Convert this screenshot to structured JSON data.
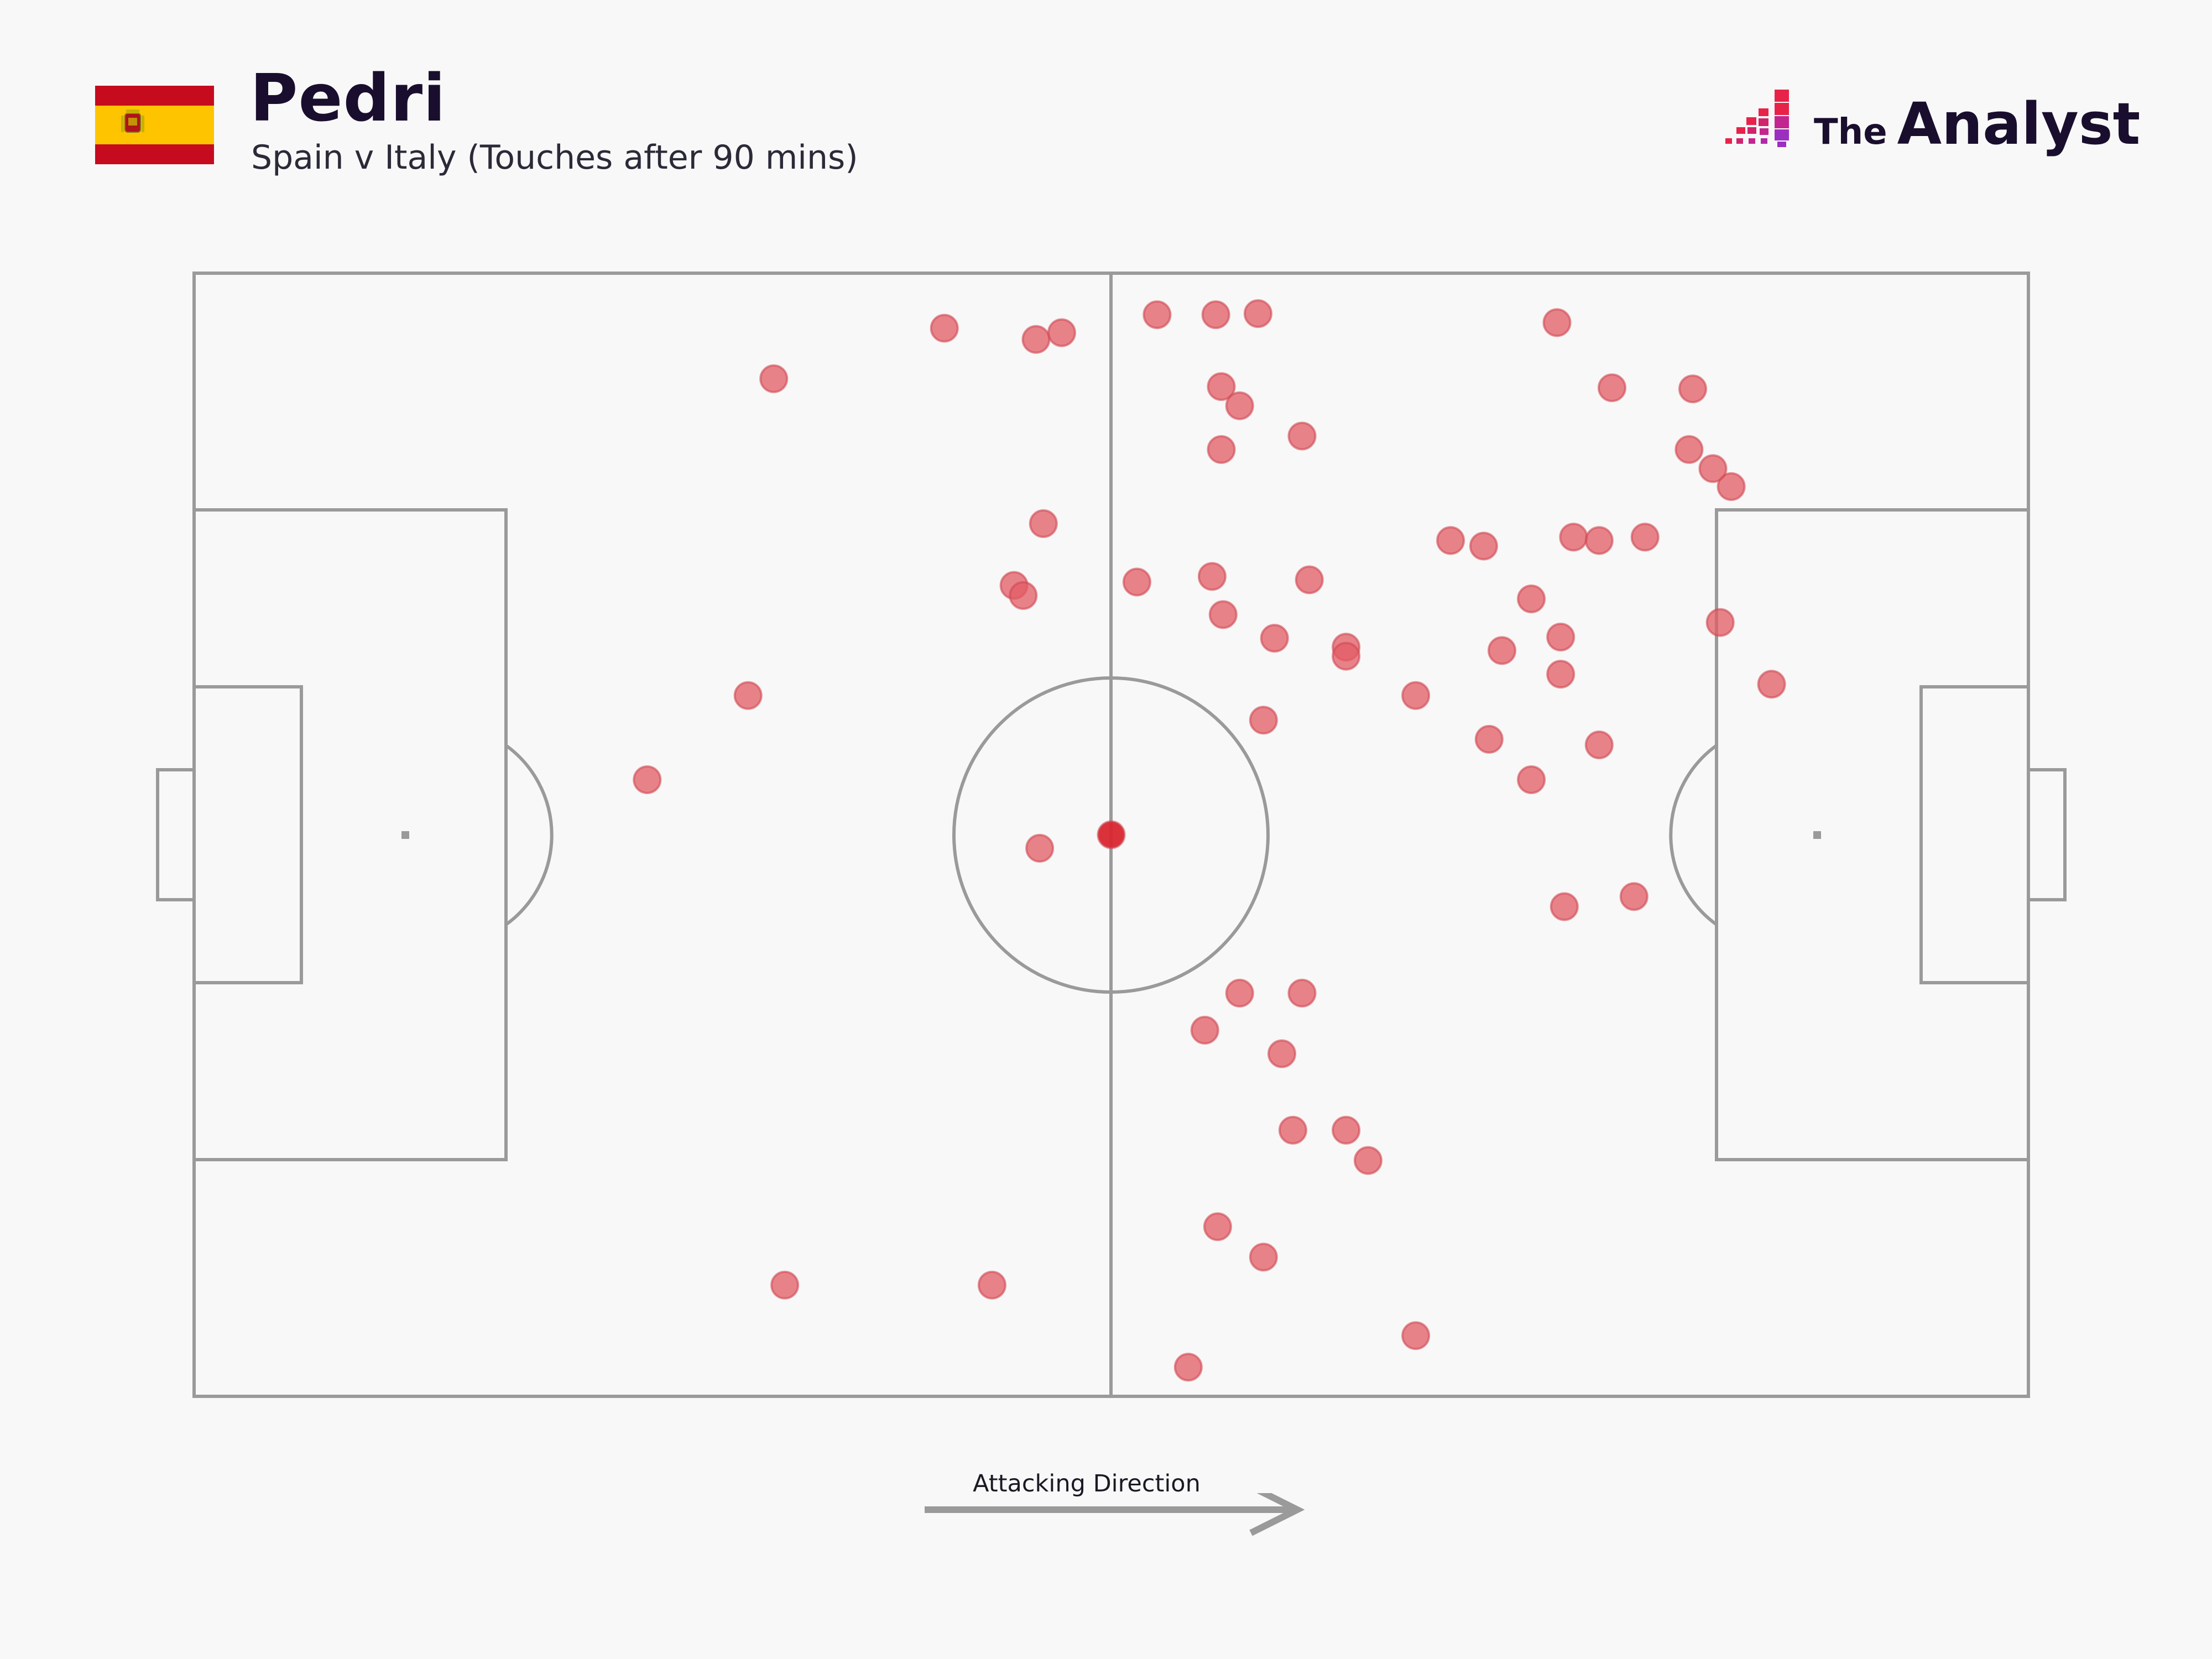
{
  "header": {
    "title": "Pedri",
    "subtitle": "Spain v Italy (Touches after 90 mins)"
  },
  "flag": {
    "country": "Spain",
    "colors": {
      "red": "#c60b1e",
      "yellow": "#ffc400"
    }
  },
  "brand": {
    "the": "The",
    "name": "Analyst",
    "accent_colors": [
      "#e8234a",
      "#c3268f",
      "#9b2fc0"
    ]
  },
  "footer": {
    "direction_label": "Attacking Direction"
  },
  "chart_data": {
    "type": "scatter",
    "title": "Pedri",
    "subtitle": "Spain v Italy (Touches after 90 mins)",
    "xlabel": "",
    "ylabel": "",
    "xlim": [
      0,
      100
    ],
    "ylim": [
      0,
      100
    ],
    "grid": false,
    "marker_color": "#e35b64",
    "highlight_color": "#d8262f",
    "points": [
      {
        "x": 40.9,
        "y": 95.1
      },
      {
        "x": 45.9,
        "y": 94.1
      },
      {
        "x": 47.3,
        "y": 94.7
      },
      {
        "x": 31.6,
        "y": 90.6
      },
      {
        "x": 52.5,
        "y": 96.3
      },
      {
        "x": 55.7,
        "y": 96.3
      },
      {
        "x": 58.0,
        "y": 96.4
      },
      {
        "x": 74.3,
        "y": 95.6
      },
      {
        "x": 56.0,
        "y": 89.9
      },
      {
        "x": 57.0,
        "y": 88.2
      },
      {
        "x": 56.0,
        "y": 84.3
      },
      {
        "x": 60.4,
        "y": 85.5
      },
      {
        "x": 77.3,
        "y": 89.8
      },
      {
        "x": 81.7,
        "y": 89.7
      },
      {
        "x": 81.5,
        "y": 84.3
      },
      {
        "x": 83.8,
        "y": 81.0
      },
      {
        "x": 82.8,
        "y": 82.6
      },
      {
        "x": 46.3,
        "y": 77.7
      },
      {
        "x": 44.7,
        "y": 72.2
      },
      {
        "x": 45.2,
        "y": 71.3
      },
      {
        "x": 51.4,
        "y": 72.5
      },
      {
        "x": 55.5,
        "y": 73.0
      },
      {
        "x": 60.8,
        "y": 72.7
      },
      {
        "x": 56.1,
        "y": 69.6
      },
      {
        "x": 68.5,
        "y": 76.2
      },
      {
        "x": 70.3,
        "y": 75.7
      },
      {
        "x": 75.2,
        "y": 76.5
      },
      {
        "x": 76.6,
        "y": 76.2
      },
      {
        "x": 79.1,
        "y": 76.5
      },
      {
        "x": 72.9,
        "y": 71.0
      },
      {
        "x": 58.9,
        "y": 67.5
      },
      {
        "x": 62.8,
        "y": 66.7
      },
      {
        "x": 62.8,
        "y": 65.9
      },
      {
        "x": 71.3,
        "y": 66.4
      },
      {
        "x": 74.5,
        "y": 67.6
      },
      {
        "x": 74.5,
        "y": 64.3
      },
      {
        "x": 83.2,
        "y": 68.9
      },
      {
        "x": 86.0,
        "y": 63.4
      },
      {
        "x": 30.2,
        "y": 62.4
      },
      {
        "x": 66.6,
        "y": 62.4
      },
      {
        "x": 58.3,
        "y": 60.2
      },
      {
        "x": 70.6,
        "y": 58.5
      },
      {
        "x": 76.6,
        "y": 58.0
      },
      {
        "x": 24.7,
        "y": 54.9
      },
      {
        "x": 72.9,
        "y": 54.9
      },
      {
        "x": 46.1,
        "y": 48.8
      },
      {
        "x": 50.0,
        "y": 50.0,
        "highlight": true
      },
      {
        "x": 74.7,
        "y": 43.6
      },
      {
        "x": 78.5,
        "y": 44.5
      },
      {
        "x": 57.0,
        "y": 35.9
      },
      {
        "x": 60.4,
        "y": 35.9
      },
      {
        "x": 55.1,
        "y": 32.6
      },
      {
        "x": 59.3,
        "y": 30.5
      },
      {
        "x": 59.9,
        "y": 23.7
      },
      {
        "x": 62.8,
        "y": 23.7
      },
      {
        "x": 64.0,
        "y": 21.0
      },
      {
        "x": 55.8,
        "y": 15.1
      },
      {
        "x": 58.3,
        "y": 12.4
      },
      {
        "x": 32.2,
        "y": 9.9
      },
      {
        "x": 43.5,
        "y": 9.9
      },
      {
        "x": 66.6,
        "y": 5.4
      },
      {
        "x": 54.2,
        "y": 2.6
      }
    ]
  }
}
